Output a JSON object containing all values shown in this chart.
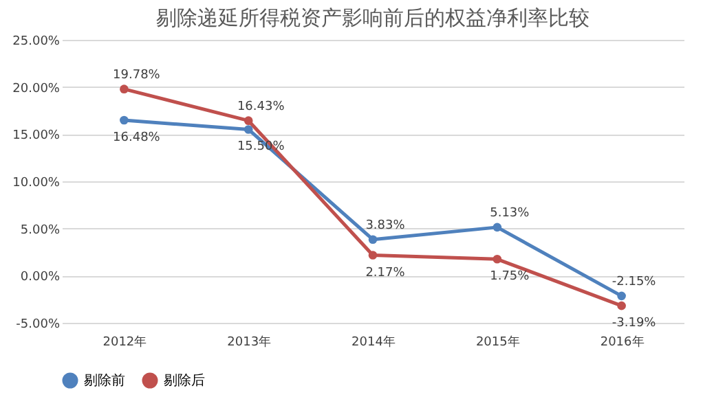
{
  "chart_data": {
    "type": "line",
    "title": "剔除递延所得税资产影响前后的权益净利率比较",
    "categories": [
      "2012年",
      "2013年",
      "2014年",
      "2015年",
      "2016年"
    ],
    "series": [
      {
        "name": "剔除前",
        "color": "#4f81bd",
        "values": [
          16.48,
          15.5,
          3.83,
          5.13,
          -2.15
        ],
        "value_labels": [
          "16.48%",
          "15.50%",
          "3.83%",
          "5.13%",
          "-2.15%"
        ]
      },
      {
        "name": "剔除后",
        "color": "#c0504d",
        "values": [
          19.78,
          16.43,
          2.17,
          1.75,
          -3.19
        ],
        "value_labels": [
          "19.78%",
          "16.43%",
          "2.17%",
          "1.75%",
          "-3.19%"
        ]
      }
    ],
    "ylim": [
      -5,
      25
    ],
    "yticks": [
      {
        "value": -5,
        "label": "-5.00%"
      },
      {
        "value": 0,
        "label": "0.00%"
      },
      {
        "value": 5,
        "label": "5.00%"
      },
      {
        "value": 10,
        "label": "10.00%"
      },
      {
        "value": 15,
        "label": "15.00%"
      },
      {
        "value": 20,
        "label": "20.00%"
      },
      {
        "value": 25,
        "label": "25.00%"
      }
    ],
    "grid": "y",
    "legend": "bottom",
    "marker": "circle",
    "line_style": "solid"
  }
}
